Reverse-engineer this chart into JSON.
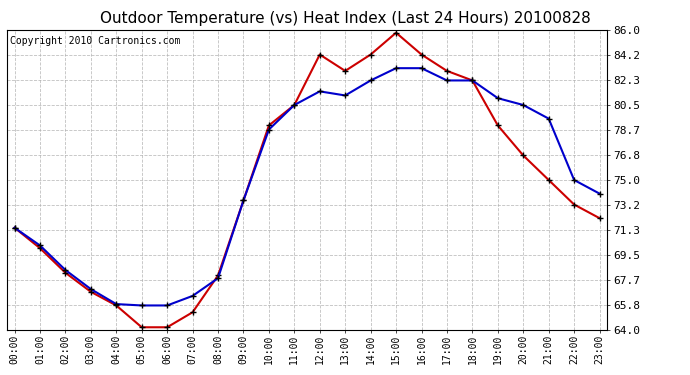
{
  "title": "Outdoor Temperature (vs) Heat Index (Last 24 Hours) 20100828",
  "copyright": "Copyright 2010 Cartronics.com",
  "hours": [
    "00:00",
    "01:00",
    "02:00",
    "03:00",
    "04:00",
    "05:00",
    "06:00",
    "07:00",
    "08:00",
    "09:00",
    "10:00",
    "11:00",
    "12:00",
    "13:00",
    "14:00",
    "15:00",
    "16:00",
    "17:00",
    "18:00",
    "19:00",
    "20:00",
    "21:00",
    "22:00",
    "23:00"
  ],
  "temp": [
    71.5,
    70.2,
    68.4,
    67.0,
    65.9,
    65.8,
    65.8,
    66.5,
    67.8,
    73.5,
    78.7,
    80.5,
    81.5,
    81.2,
    82.3,
    83.2,
    83.2,
    82.3,
    82.3,
    81.0,
    80.5,
    79.5,
    75.0,
    74.0
  ],
  "heat_index": [
    71.5,
    70.0,
    68.2,
    66.8,
    65.8,
    64.2,
    64.2,
    65.3,
    68.0,
    73.5,
    79.0,
    80.5,
    84.2,
    83.0,
    84.2,
    85.8,
    84.2,
    83.0,
    82.3,
    79.0,
    76.8,
    75.0,
    73.2,
    72.2
  ],
  "ylim": [
    64.0,
    86.0
  ],
  "yticks": [
    64.0,
    65.8,
    67.7,
    69.5,
    71.3,
    73.2,
    75.0,
    76.8,
    78.7,
    80.5,
    82.3,
    84.2,
    86.0
  ],
  "temp_color": "#0000cc",
  "heat_index_color": "#cc0000",
  "bg_color": "#ffffff",
  "grid_color": "#b0b0b0",
  "title_color": "#000000",
  "copyright_color": "#000000",
  "title_fontsize": 11,
  "copyright_fontsize": 7,
  "tick_fontsize": 7,
  "ytick_fontsize": 8
}
